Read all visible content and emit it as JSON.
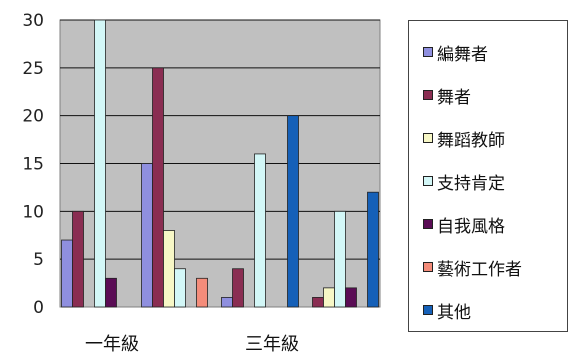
{
  "chart_data": {
    "type": "bar",
    "categories": [
      "一年級",
      "",
      "三年級",
      ""
    ],
    "ylim": [
      0,
      30
    ],
    "yticks": [
      0,
      5,
      10,
      15,
      20,
      25,
      30
    ],
    "grid": true,
    "legend_position": "right",
    "plot_background": "#c0c0c0",
    "series": [
      {
        "name": "編舞者",
        "color": "#8f8fdf",
        "values": [
          7,
          15,
          1,
          0
        ]
      },
      {
        "name": "舞者",
        "color": "#8a2d52",
        "values": [
          10,
          25,
          4,
          1
        ]
      },
      {
        "name": "舞蹈教師",
        "color": "#f7f7c6",
        "values": [
          0,
          8,
          0,
          2
        ]
      },
      {
        "name": "支持肯定",
        "color": "#d3f7f7",
        "values": [
          30,
          4,
          16,
          10
        ]
      },
      {
        "name": "自我風格",
        "color": "#5a0c55",
        "values": [
          3,
          0,
          0,
          2
        ]
      },
      {
        "name": "藝術工作者",
        "color": "#f48c7a",
        "values": [
          0,
          3,
          0,
          0
        ]
      },
      {
        "name": "其他",
        "color": "#1560b8",
        "values": [
          0,
          0,
          20,
          12
        ]
      }
    ]
  }
}
